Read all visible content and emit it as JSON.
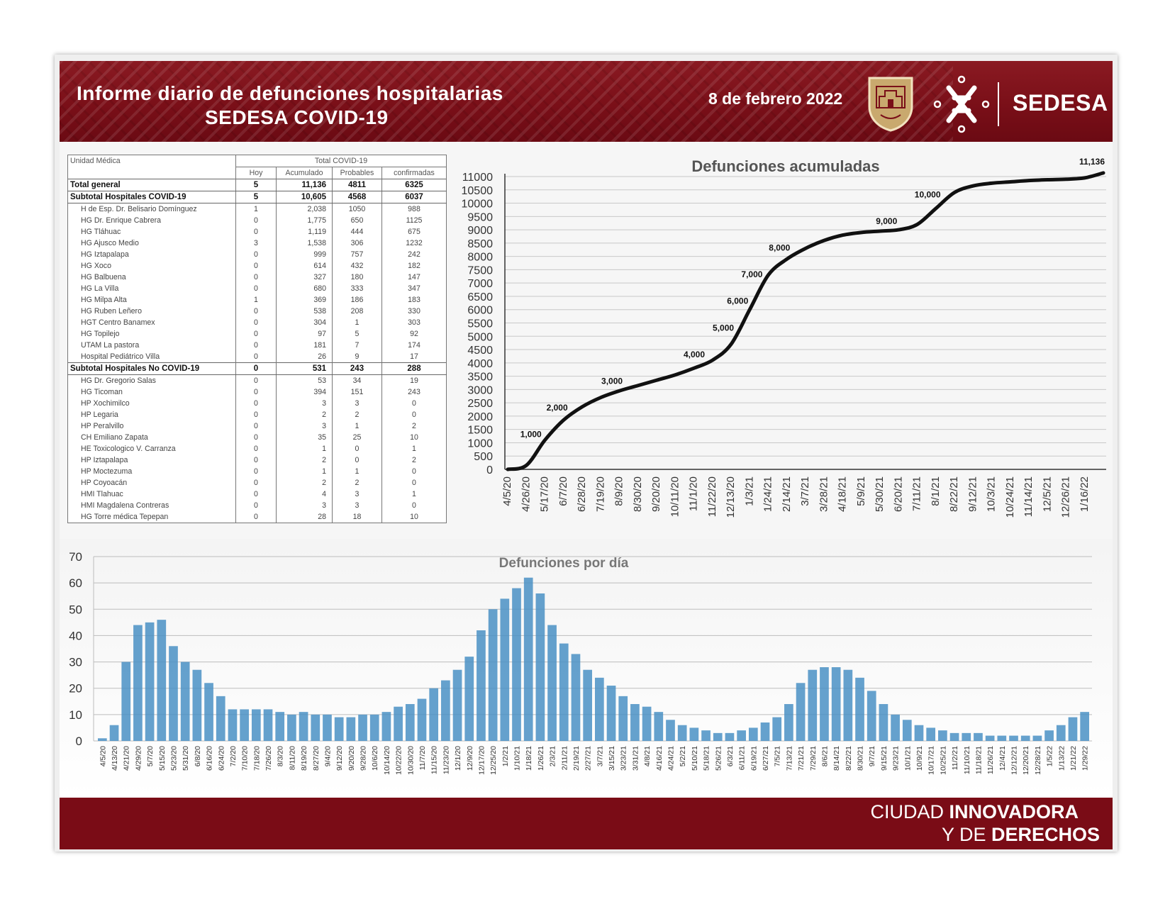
{
  "header": {
    "title_line1": "Informe diario de defunciones hospitalarias",
    "title_line2": "SEDESA COVID-19",
    "date": "8 de febrero 2022",
    "brand": "SEDESA",
    "brand_color": "#7a0f18"
  },
  "footer": {
    "slogan_a": "CIUDAD ",
    "slogan_b": "INNOVADORA",
    "slogan_c": "Y DE ",
    "slogan_d": "DERECHOS"
  },
  "table": {
    "col_unit": "Unidad Médica",
    "group_header": "Total COVID-19",
    "columns": [
      "Hoy",
      "Acumulado",
      "Probables",
      "confirmadas"
    ],
    "rows": [
      {
        "name": "Total general",
        "type": "bold",
        "values": [
          "5",
          "11,136",
          "4811",
          "6325"
        ]
      },
      {
        "name": "Subtotal Hospitales COVID-19",
        "type": "bold",
        "values": [
          "5",
          "10,605",
          "4568",
          "6037"
        ]
      },
      {
        "name": "H de Esp. Dr. Belisario Domínguez",
        "type": "sub",
        "values": [
          "1",
          "2,038",
          "1050",
          "988"
        ]
      },
      {
        "name": "HG Dr. Enrique Cabrera",
        "type": "sub",
        "values": [
          "0",
          "1,775",
          "650",
          "1125"
        ]
      },
      {
        "name": "HG Tláhuac",
        "type": "sub",
        "values": [
          "0",
          "1,119",
          "444",
          "675"
        ]
      },
      {
        "name": "HG Ajusco Medio",
        "type": "sub",
        "values": [
          "3",
          "1,538",
          "306",
          "1232"
        ]
      },
      {
        "name": "HG Iztapalapa",
        "type": "sub",
        "values": [
          "0",
          "999",
          "757",
          "242"
        ]
      },
      {
        "name": "HG Xoco",
        "type": "sub",
        "values": [
          "0",
          "614",
          "432",
          "182"
        ]
      },
      {
        "name": "HG Balbuena",
        "type": "sub",
        "values": [
          "0",
          "327",
          "180",
          "147"
        ]
      },
      {
        "name": "HG La Villa",
        "type": "sub",
        "values": [
          "0",
          "680",
          "333",
          "347"
        ]
      },
      {
        "name": "HG Milpa Alta",
        "type": "sub",
        "values": [
          "1",
          "369",
          "186",
          "183"
        ]
      },
      {
        "name": "HG Ruben Leñero",
        "type": "sub",
        "values": [
          "0",
          "538",
          "208",
          "330"
        ]
      },
      {
        "name": "HGT Centro Banamex",
        "type": "sub",
        "values": [
          "0",
          "304",
          "1",
          "303"
        ]
      },
      {
        "name": "HG Topilejo",
        "type": "sub",
        "values": [
          "0",
          "97",
          "5",
          "92"
        ]
      },
      {
        "name": "UTAM La pastora",
        "type": "sub",
        "values": [
          "0",
          "181",
          "7",
          "174"
        ]
      },
      {
        "name": "Hospital Pediátrico Villa",
        "type": "sub",
        "values": [
          "0",
          "26",
          "9",
          "17"
        ]
      },
      {
        "name": "Subtotal Hospitales No COVID-19",
        "type": "bold",
        "values": [
          "0",
          "531",
          "243",
          "288"
        ]
      },
      {
        "name": "HG Dr. Gregorio Salas",
        "type": "sub",
        "values": [
          "0",
          "53",
          "34",
          "19"
        ]
      },
      {
        "name": "HG Ticoman",
        "type": "sub",
        "values": [
          "0",
          "394",
          "151",
          "243"
        ]
      },
      {
        "name": "HP Xochimilco",
        "type": "sub",
        "values": [
          "0",
          "3",
          "3",
          "0"
        ]
      },
      {
        "name": "HP Legaria",
        "type": "sub",
        "values": [
          "0",
          "2",
          "2",
          "0"
        ]
      },
      {
        "name": "HP Peralvillo",
        "type": "sub",
        "values": [
          "0",
          "3",
          "1",
          "2"
        ]
      },
      {
        "name": "CH Emiliano Zapata",
        "type": "sub",
        "values": [
          "0",
          "35",
          "25",
          "10"
        ]
      },
      {
        "name": "HE Toxicologico V. Carranza",
        "type": "sub",
        "values": [
          "0",
          "1",
          "0",
          "1"
        ]
      },
      {
        "name": "HP Iztapalapa",
        "type": "sub",
        "values": [
          "0",
          "2",
          "0",
          "2"
        ]
      },
      {
        "name": "HP Moctezuma",
        "type": "sub",
        "values": [
          "0",
          "1",
          "1",
          "0"
        ]
      },
      {
        "name": "HP Coyoacán",
        "type": "sub",
        "values": [
          "0",
          "2",
          "2",
          "0"
        ]
      },
      {
        "name": "HMI Tlahuac",
        "type": "sub",
        "values": [
          "0",
          "4",
          "3",
          "1"
        ]
      },
      {
        "name": "HMI Magdalena Contreras",
        "type": "sub",
        "values": [
          "0",
          "3",
          "3",
          "0"
        ]
      },
      {
        "name": "HG Torre médica Tepepan",
        "type": "sub",
        "values": [
          "0",
          "28",
          "18",
          "10"
        ]
      }
    ]
  },
  "chart_data": [
    {
      "type": "line",
      "title": "Defunciones acumuladas",
      "xlabel": "",
      "ylabel": "",
      "ylim": [
        0,
        11000
      ],
      "yticks": [
        0,
        500,
        1000,
        1500,
        2000,
        2500,
        3000,
        3500,
        4000,
        4500,
        5000,
        5500,
        6000,
        6500,
        7000,
        7500,
        8000,
        8500,
        9000,
        9500,
        10000,
        10500,
        11000
      ],
      "grid": true,
      "x_tick_labels": [
        "4/5/20",
        "4/26/20",
        "5/17/20",
        "6/7/20",
        "6/28/20",
        "7/19/20",
        "8/9/20",
        "8/30/20",
        "9/20/20",
        "10/11/20",
        "11/1/20",
        "11/22/20",
        "12/13/20",
        "1/3/21",
        "1/24/21",
        "2/14/21",
        "3/7/21",
        "3/28/21",
        "4/18/21",
        "5/9/21",
        "5/30/21",
        "6/20/21",
        "7/11/21",
        "8/1/21",
        "8/22/21",
        "9/12/21",
        "10/3/21",
        "10/24/21",
        "11/14/21",
        "12/5/21",
        "12/26/21",
        "1/16/22"
      ],
      "series": [
        {
          "color": "#111111",
          "x": [
            "4/5/20",
            "4/26/20",
            "5/17/20",
            "6/7/20",
            "6/28/20",
            "7/19/20",
            "8/9/20",
            "8/30/20",
            "9/20/20",
            "10/11/20",
            "11/1/20",
            "11/22/20",
            "12/13/20",
            "1/3/21",
            "1/24/21",
            "2/14/21",
            "3/7/21",
            "3/28/21",
            "4/18/21",
            "5/9/21",
            "5/30/21",
            "6/20/21",
            "7/11/21",
            "8/1/21",
            "8/22/21",
            "9/12/21",
            "10/3/21",
            "10/24/21",
            "11/14/21",
            "12/5/21",
            "12/26/21",
            "1/16/22",
            "2/8/22"
          ],
          "values": [
            0,
            150,
            1100,
            1850,
            2350,
            2700,
            2950,
            3150,
            3350,
            3550,
            3800,
            4100,
            4700,
            6000,
            7300,
            7900,
            8300,
            8600,
            8800,
            8900,
            8950,
            9000,
            9200,
            9800,
            10400,
            10650,
            10750,
            10800,
            10850,
            10880,
            10900,
            10950,
            11136
          ]
        }
      ],
      "annotations": [
        "1,000",
        "2,000",
        "3,000",
        "4,000",
        "5,000",
        "6,000",
        "7,000",
        "8,000",
        "9,000",
        "10,000",
        "11,136"
      ]
    },
    {
      "type": "bar",
      "title": "Defunciones por día",
      "xlabel": "",
      "ylabel": "",
      "ylim": [
        0,
        70
      ],
      "yticks": [
        0,
        10,
        20,
        30,
        40,
        50,
        60,
        70
      ],
      "grid": true,
      "x_tick_labels": [
        "4/5/20",
        "4/13/20",
        "4/21/20",
        "4/29/20",
        "5/7/20",
        "5/15/20",
        "5/23/20",
        "5/31/20",
        "6/8/20",
        "6/16/20",
        "6/24/20",
        "7/2/20",
        "7/10/20",
        "7/18/20",
        "7/26/20",
        "8/3/20",
        "8/11/20",
        "8/19/20",
        "8/27/20",
        "9/4/20",
        "9/12/20",
        "9/20/20",
        "9/28/20",
        "10/6/20",
        "10/14/20",
        "10/22/20",
        "10/30/20",
        "11/7/20",
        "11/15/20",
        "11/23/20",
        "12/1/20",
        "12/9/20",
        "12/17/20",
        "12/25/20",
        "1/2/21",
        "1/10/21",
        "1/18/21",
        "1/26/21",
        "2/3/21",
        "2/11/21",
        "2/19/21",
        "2/27/21",
        "3/7/21",
        "3/15/21",
        "3/23/21",
        "3/31/21",
        "4/8/21",
        "4/16/21",
        "4/24/21",
        "5/2/21",
        "5/10/21",
        "5/18/21",
        "5/26/21",
        "6/3/21",
        "6/11/21",
        "6/19/21",
        "6/27/21",
        "7/5/21",
        "7/13/21",
        "7/21/21",
        "7/29/21",
        "8/6/21",
        "8/14/21",
        "8/22/21",
        "8/30/21",
        "9/7/21",
        "9/15/21",
        "9/23/21",
        "10/1/21",
        "10/9/21",
        "10/17/21",
        "10/25/21",
        "11/2/21",
        "11/10/21",
        "11/18/21",
        "11/26/21",
        "12/4/21",
        "12/12/21",
        "12/20/21",
        "12/28/21",
        "1/5/22",
        "1/13/22",
        "1/21/22",
        "1/29/22"
      ],
      "series": [
        {
          "color": "#4a90c4",
          "x": [
            "4/5/20",
            "4/13/20",
            "4/21/20",
            "4/29/20",
            "5/7/20",
            "5/15/20",
            "5/23/20",
            "5/31/20",
            "6/8/20",
            "6/16/20",
            "6/24/20",
            "7/2/20",
            "7/10/20",
            "7/18/20",
            "7/26/20",
            "8/3/20",
            "8/11/20",
            "8/19/20",
            "8/27/20",
            "9/4/20",
            "9/12/20",
            "9/20/20",
            "9/28/20",
            "10/6/20",
            "10/14/20",
            "10/22/20",
            "10/30/20",
            "11/7/20",
            "11/15/20",
            "11/23/20",
            "12/1/20",
            "12/9/20",
            "12/17/20",
            "12/25/20",
            "1/2/21",
            "1/10/21",
            "1/18/21",
            "1/26/21",
            "2/3/21",
            "2/11/21",
            "2/19/21",
            "2/27/21",
            "3/7/21",
            "3/15/21",
            "3/23/21",
            "3/31/21",
            "4/8/21",
            "4/16/21",
            "4/24/21",
            "5/2/21",
            "5/10/21",
            "5/18/21",
            "5/26/21",
            "6/3/21",
            "6/11/21",
            "6/19/21",
            "6/27/21",
            "7/5/21",
            "7/13/21",
            "7/21/21",
            "7/29/21",
            "8/6/21",
            "8/14/21",
            "8/22/21",
            "8/30/21",
            "9/7/21",
            "9/15/21",
            "9/23/21",
            "10/1/21",
            "10/9/21",
            "10/17/21",
            "10/25/21",
            "11/2/21",
            "11/10/21",
            "11/18/21",
            "11/26/21",
            "12/4/21",
            "12/12/21",
            "12/20/21",
            "12/28/21",
            "1/5/22",
            "1/13/22",
            "1/21/22",
            "1/29/22"
          ],
          "values": [
            1,
            6,
            30,
            44,
            45,
            46,
            36,
            30,
            27,
            22,
            17,
            12,
            12,
            12,
            12,
            11,
            10,
            11,
            10,
            10,
            9,
            9,
            10,
            10,
            11,
            13,
            14,
            16,
            20,
            23,
            27,
            32,
            42,
            50,
            54,
            58,
            62,
            56,
            44,
            37,
            33,
            27,
            24,
            21,
            17,
            14,
            13,
            11,
            8,
            6,
            5,
            4,
            3,
            3,
            4,
            5,
            7,
            9,
            14,
            22,
            27,
            28,
            28,
            27,
            24,
            19,
            14,
            10,
            8,
            6,
            5,
            4,
            3,
            3,
            3,
            2,
            2,
            2,
            2,
            2,
            4,
            6,
            9,
            11
          ]
        }
      ]
    }
  ]
}
